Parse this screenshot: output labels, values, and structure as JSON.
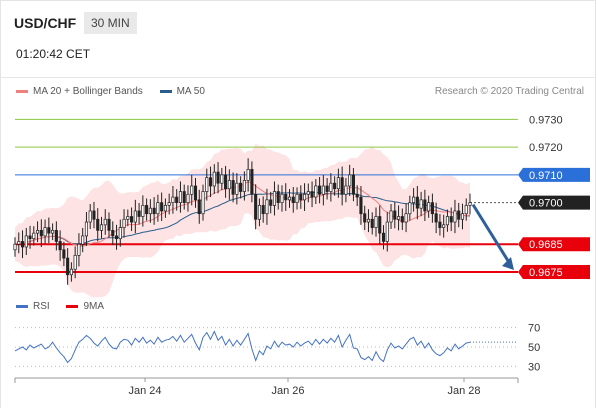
{
  "header": {
    "pair": "USD/CHF",
    "timeframe": "30 MIN",
    "time": "01:20:42 CET"
  },
  "legend": {
    "ma20_label": "MA 20 + Bollinger Bands",
    "ma50_label": "MA 50",
    "credit": "Research © 2020 Trading Central"
  },
  "rsi_legend": {
    "rsi_label": "RSI",
    "ma9_label": "9MA"
  },
  "colors": {
    "ma20": "#f08080",
    "ma50": "#2b5d8c",
    "bands_fill": "#fde0e0",
    "resistance_green": "#8cc63f",
    "pivot_blue": "#2b6fd9",
    "support_red": "#e8000b",
    "arrow": "#2f5f9a",
    "candle": "#222222",
    "rsi": "#4472c4"
  },
  "chart_data": [
    {
      "type": "candlestick",
      "title": "USD/CHF",
      "x_ticks": [
        "Jan 24",
        "Jan 26",
        "Jan 28"
      ],
      "ylim": [
        0.96685,
        0.9737
      ],
      "levels": [
        {
          "label": "0.9730",
          "value": 0.973,
          "kind": "resistance"
        },
        {
          "label": "0.9720",
          "value": 0.972,
          "kind": "resistance"
        },
        {
          "label": "0.9710",
          "value": 0.971,
          "kind": "pivot"
        },
        {
          "label": "0.9700",
          "value": 0.97,
          "kind": "last"
        },
        {
          "label": "0.9685",
          "value": 0.9685,
          "kind": "support"
        },
        {
          "label": "0.9675",
          "value": 0.9675,
          "kind": "support"
        }
      ],
      "close_series": [
        0.9685,
        0.9686,
        0.9684,
        0.9688,
        0.9687,
        0.9689,
        0.969,
        0.9688,
        0.9691,
        0.9689,
        0.969,
        0.9686,
        0.9683,
        0.968,
        0.9674,
        0.9676,
        0.9681,
        0.9685,
        0.9688,
        0.9693,
        0.9697,
        0.9694,
        0.969,
        0.9692,
        0.9694,
        0.969,
        0.9688,
        0.9687,
        0.9691,
        0.9694,
        0.9695,
        0.9693,
        0.9697,
        0.9695,
        0.9699,
        0.9696,
        0.9698,
        0.9696,
        0.97,
        0.9697,
        0.9699,
        0.97,
        0.9702,
        0.97,
        0.9704,
        0.97,
        0.9703,
        0.9706,
        0.9701,
        0.9696,
        0.9704,
        0.9709,
        0.9706,
        0.9711,
        0.9707,
        0.971,
        0.9705,
        0.9708,
        0.9703,
        0.9707,
        0.9704,
        0.9708,
        0.9712,
        0.9703,
        0.9694,
        0.9699,
        0.9696,
        0.9701,
        0.9699,
        0.9704,
        0.97,
        0.9703,
        0.9701,
        0.9702,
        0.97,
        0.9703,
        0.9701,
        0.9703,
        0.9704,
        0.9702,
        0.9706,
        0.9703,
        0.9706,
        0.9704,
        0.9707,
        0.9705,
        0.9709,
        0.9703,
        0.9706,
        0.971,
        0.9703,
        0.9702,
        0.9696,
        0.9693,
        0.9694,
        0.9691,
        0.9695,
        0.9689,
        0.9686,
        0.9693,
        0.9697,
        0.9694,
        0.9695,
        0.9693,
        0.9696,
        0.97,
        0.9702,
        0.9698,
        0.9701,
        0.9697,
        0.97,
        0.9696,
        0.9693,
        0.9691,
        0.9692,
        0.9695,
        0.9693,
        0.9697,
        0.9694,
        0.9696,
        0.9699,
        0.97
      ],
      "projection": {
        "from": 0.97,
        "to": 0.9675
      }
    },
    {
      "type": "line",
      "title": "RSI",
      "y_ticks": [
        "70",
        "50",
        "30"
      ],
      "ylim": [
        20,
        80
      ],
      "series": [
        {
          "name": "RSI",
          "values": [
            46,
            48,
            50,
            47,
            52,
            49,
            51,
            53,
            48,
            50,
            55,
            49,
            44,
            40,
            34,
            38,
            47,
            55,
            58,
            62,
            59,
            54,
            51,
            56,
            60,
            53,
            49,
            48,
            55,
            58,
            57,
            52,
            59,
            55,
            60,
            54,
            57,
            53,
            60,
            55,
            57,
            58,
            61,
            56,
            62,
            55,
            59,
            63,
            54,
            47,
            60,
            65,
            58,
            66,
            57,
            61,
            52,
            58,
            51,
            57,
            52,
            58,
            64,
            48,
            36,
            46,
            42,
            51,
            48,
            56,
            50,
            55,
            52,
            53,
            50,
            55,
            51,
            54,
            56,
            52,
            58,
            53,
            58,
            54,
            59,
            55,
            62,
            50,
            57,
            63,
            49,
            48,
            39,
            37,
            40,
            36,
            45,
            38,
            35,
            47,
            54,
            49,
            51,
            48,
            53,
            58,
            60,
            52,
            56,
            49,
            54,
            47,
            43,
            41,
            44,
            49,
            46,
            53,
            48,
            51,
            54,
            55
          ]
        }
      ]
    }
  ]
}
